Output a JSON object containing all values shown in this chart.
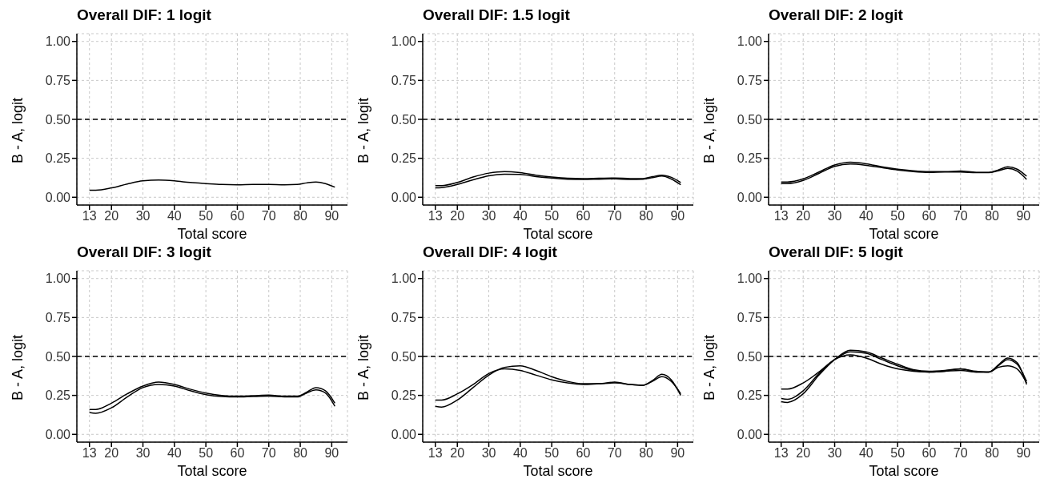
{
  "chart_data": [
    {
      "type": "line",
      "title": "Overall DIF: 1 logit",
      "xlabel": "Total score",
      "ylabel": "B - A, logit",
      "x": [
        13,
        15,
        20,
        25,
        30,
        35,
        40,
        45,
        50,
        55,
        60,
        65,
        70,
        75,
        79,
        82,
        85,
        88,
        91
      ],
      "series": [
        {
          "color": "#000000",
          "values": [
            0.045,
            0.045,
            0.06,
            0.085,
            0.105,
            0.11,
            0.105,
            0.095,
            0.088,
            0.082,
            0.08,
            0.082,
            0.082,
            0.08,
            0.082,
            0.092,
            0.098,
            0.088,
            0.065
          ]
        }
      ],
      "xlim": [
        9,
        95
      ],
      "xticks": [
        13,
        20,
        30,
        40,
        50,
        60,
        70,
        80,
        90
      ],
      "ylim": [
        -0.05,
        1.05
      ],
      "yticks": [
        {
          "value": 0,
          "label": "0.00"
        },
        {
          "value": 0.25,
          "label": "0.25"
        },
        {
          "value": 0.5,
          "label": "0.50"
        },
        {
          "value": 0.75,
          "label": "0.75"
        },
        {
          "value": 1,
          "label": "1.00"
        }
      ],
      "ref_lines": [
        {
          "axis": "y",
          "value": 0.5,
          "color": "#000000",
          "line_style": "dashed"
        }
      ],
      "grid": true,
      "line_style": "solid"
    },
    {
      "type": "line",
      "title": "Overall DIF: 1.5 logit",
      "xlabel": "Total score",
      "ylabel": "B - A, logit",
      "x": [
        13,
        15,
        20,
        25,
        30,
        35,
        40,
        45,
        50,
        55,
        60,
        65,
        70,
        75,
        79,
        82,
        85,
        88,
        91
      ],
      "series": [
        {
          "color": "#000000",
          "values": [
            0.075,
            0.075,
            0.095,
            0.13,
            0.155,
            0.165,
            0.158,
            0.142,
            0.13,
            0.122,
            0.12,
            0.122,
            0.124,
            0.12,
            0.12,
            0.132,
            0.142,
            0.128,
            0.095
          ]
        },
        {
          "color": "#000000",
          "values": [
            0.06,
            0.062,
            0.082,
            0.112,
            0.138,
            0.148,
            0.146,
            0.133,
            0.123,
            0.116,
            0.114,
            0.116,
            0.118,
            0.114,
            0.116,
            0.126,
            0.136,
            0.117,
            0.08
          ]
        }
      ],
      "xlim": [
        9,
        95
      ],
      "xticks": [
        13,
        20,
        30,
        40,
        50,
        60,
        70,
        80,
        90
      ],
      "ylim": [
        -0.05,
        1.05
      ],
      "yticks": [
        {
          "value": 0,
          "label": "0.00"
        },
        {
          "value": 0.25,
          "label": "0.25"
        },
        {
          "value": 0.5,
          "label": "0.50"
        },
        {
          "value": 0.75,
          "label": "0.75"
        },
        {
          "value": 1,
          "label": "1.00"
        }
      ],
      "ref_lines": [
        {
          "axis": "y",
          "value": 0.5,
          "color": "#000000",
          "line_style": "dashed"
        }
      ],
      "grid": true,
      "line_style": "solid"
    },
    {
      "type": "line",
      "title": "Overall DIF: 2 logit",
      "xlabel": "Total score",
      "ylabel": "B - A, logit",
      "x": [
        13,
        15,
        20,
        25,
        30,
        35,
        40,
        45,
        50,
        55,
        60,
        65,
        70,
        75,
        79,
        82,
        85,
        88,
        91
      ],
      "series": [
        {
          "color": "#000000",
          "values": [
            0.098,
            0.098,
            0.118,
            0.162,
            0.207,
            0.225,
            0.215,
            0.195,
            0.18,
            0.17,
            0.165,
            0.165,
            0.168,
            0.16,
            0.16,
            0.175,
            0.195,
            0.18,
            0.135
          ]
        },
        {
          "color": "#000000",
          "values": [
            0.088,
            0.088,
            0.108,
            0.153,
            0.198,
            0.213,
            0.205,
            0.19,
            0.175,
            0.165,
            0.16,
            0.162,
            0.162,
            0.158,
            0.158,
            0.17,
            0.185,
            0.168,
            0.115
          ]
        }
      ],
      "xlim": [
        9,
        95
      ],
      "xticks": [
        13,
        20,
        30,
        40,
        50,
        60,
        70,
        80,
        90
      ],
      "ylim": [
        -0.05,
        1.05
      ],
      "yticks": [
        {
          "value": 0,
          "label": "0.00"
        },
        {
          "value": 0.25,
          "label": "0.25"
        },
        {
          "value": 0.5,
          "label": "0.50"
        },
        {
          "value": 0.75,
          "label": "0.75"
        },
        {
          "value": 1,
          "label": "1.00"
        }
      ],
      "ref_lines": [
        {
          "axis": "y",
          "value": 0.5,
          "color": "#000000",
          "line_style": "dashed"
        }
      ],
      "grid": true,
      "line_style": "solid"
    },
    {
      "type": "line",
      "title": "Overall DIF: 3 logit",
      "xlabel": "Total score",
      "ylabel": "B - A, logit",
      "x": [
        13,
        15,
        20,
        25,
        30,
        35,
        40,
        45,
        50,
        55,
        60,
        65,
        70,
        75,
        79,
        82,
        85,
        88,
        91
      ],
      "series": [
        {
          "color": "#000000",
          "values": [
            0.16,
            0.16,
            0.2,
            0.26,
            0.31,
            0.335,
            0.32,
            0.29,
            0.265,
            0.25,
            0.245,
            0.248,
            0.252,
            0.245,
            0.245,
            0.27,
            0.3,
            0.28,
            0.2
          ]
        },
        {
          "color": "#000000",
          "values": [
            0.14,
            0.135,
            0.17,
            0.24,
            0.3,
            0.32,
            0.31,
            0.28,
            0.255,
            0.243,
            0.24,
            0.243,
            0.245,
            0.24,
            0.24,
            0.265,
            0.285,
            0.265,
            0.18
          ]
        }
      ],
      "xlim": [
        9,
        95
      ],
      "xticks": [
        13,
        20,
        30,
        40,
        50,
        60,
        70,
        80,
        90
      ],
      "ylim": [
        -0.05,
        1.05
      ],
      "yticks": [
        {
          "value": 0,
          "label": "0.00"
        },
        {
          "value": 0.25,
          "label": "0.25"
        },
        {
          "value": 0.5,
          "label": "0.50"
        },
        {
          "value": 0.75,
          "label": "0.75"
        },
        {
          "value": 1,
          "label": "1.00"
        }
      ],
      "ref_lines": [
        {
          "axis": "y",
          "value": 0.5,
          "color": "#000000",
          "line_style": "dashed"
        }
      ],
      "grid": true,
      "line_style": "solid"
    },
    {
      "type": "line",
      "title": "Overall DIF: 4 logit",
      "xlabel": "Total score",
      "ylabel": "B - A, logit",
      "x": [
        13,
        15,
        20,
        25,
        30,
        35,
        40,
        45,
        50,
        55,
        60,
        65,
        70,
        75,
        79,
        82,
        85,
        88,
        91
      ],
      "series": [
        {
          "color": "#000000",
          "values": [
            0.22,
            0.22,
            0.26,
            0.32,
            0.39,
            0.42,
            0.41,
            0.38,
            0.35,
            0.33,
            0.32,
            0.325,
            0.33,
            0.32,
            0.315,
            0.34,
            0.37,
            0.34,
            0.26
          ]
        },
        {
          "color": "#000000",
          "values": [
            0.18,
            0.175,
            0.22,
            0.3,
            0.38,
            0.43,
            0.44,
            0.41,
            0.37,
            0.34,
            0.325,
            0.325,
            0.335,
            0.32,
            0.315,
            0.345,
            0.385,
            0.35,
            0.25
          ]
        }
      ],
      "xlim": [
        9,
        95
      ],
      "xticks": [
        13,
        20,
        30,
        40,
        50,
        60,
        70,
        80,
        90
      ],
      "ylim": [
        -0.05,
        1.05
      ],
      "yticks": [
        {
          "value": 0,
          "label": "0.00"
        },
        {
          "value": 0.25,
          "label": "0.25"
        },
        {
          "value": 0.5,
          "label": "0.50"
        },
        {
          "value": 0.75,
          "label": "0.75"
        },
        {
          "value": 1,
          "label": "1.00"
        }
      ],
      "ref_lines": [
        {
          "axis": "y",
          "value": 0.5,
          "color": "#000000",
          "line_style": "dashed"
        }
      ],
      "grid": true,
      "line_style": "solid"
    },
    {
      "type": "line",
      "title": "Overall DIF: 5 logit",
      "xlabel": "Total score",
      "ylabel": "B - A, logit",
      "x": [
        13,
        15,
        20,
        25,
        30,
        35,
        40,
        45,
        50,
        55,
        60,
        65,
        70,
        75,
        79,
        82,
        85,
        88,
        91
      ],
      "series": [
        {
          "color": "#000000",
          "values": [
            0.29,
            0.29,
            0.33,
            0.4,
            0.48,
            0.51,
            0.49,
            0.45,
            0.42,
            0.405,
            0.4,
            0.405,
            0.41,
            0.4,
            0.4,
            0.43,
            0.44,
            0.42,
            0.33
          ]
        },
        {
          "color": "#000000",
          "values": [
            0.23,
            0.225,
            0.28,
            0.39,
            0.48,
            0.53,
            0.52,
            0.48,
            0.44,
            0.41,
            0.4,
            0.405,
            0.42,
            0.4,
            0.4,
            0.44,
            0.48,
            0.45,
            0.34
          ]
        },
        {
          "color": "#000000",
          "values": [
            0.21,
            0.205,
            0.26,
            0.38,
            0.48,
            0.54,
            0.53,
            0.49,
            0.45,
            0.415,
            0.405,
            0.41,
            0.42,
            0.405,
            0.4,
            0.445,
            0.49,
            0.46,
            0.32
          ]
        }
      ],
      "xlim": [
        9,
        95
      ],
      "xticks": [
        13,
        20,
        30,
        40,
        50,
        60,
        70,
        80,
        90
      ],
      "ylim": [
        -0.05,
        1.05
      ],
      "yticks": [
        {
          "value": 0,
          "label": "0.00"
        },
        {
          "value": 0.25,
          "label": "0.25"
        },
        {
          "value": 0.5,
          "label": "0.50"
        },
        {
          "value": 0.75,
          "label": "0.75"
        },
        {
          "value": 1,
          "label": "1.00"
        }
      ],
      "ref_lines": [
        {
          "axis": "y",
          "value": 0.5,
          "color": "#000000",
          "line_style": "dashed"
        }
      ],
      "grid": true,
      "line_style": "solid"
    }
  ]
}
